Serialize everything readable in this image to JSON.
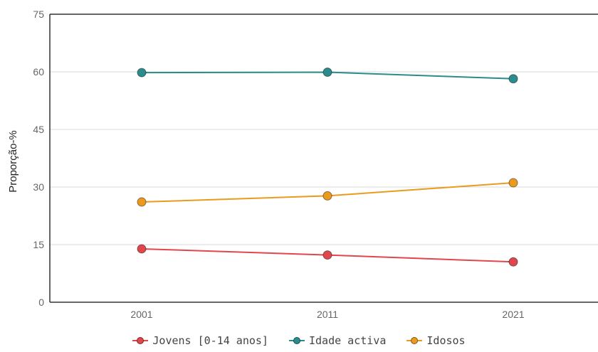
{
  "chart_data": {
    "type": "line",
    "categories": [
      "2001",
      "2011",
      "2021"
    ],
    "ylabel": "Proporção-%",
    "xlabel": "",
    "ylim": [
      0,
      75
    ],
    "yticks": [
      0,
      15,
      30,
      45,
      60,
      75
    ],
    "grid": true,
    "legend_position": "bottom",
    "series": [
      {
        "name": "Jovens [0-14 anos]",
        "color": "#e0474c",
        "values": [
          13.9,
          12.3,
          10.5
        ]
      },
      {
        "name": "Idade activa",
        "color": "#2a8c8c",
        "values": [
          59.8,
          59.9,
          58.2
        ]
      },
      {
        "name": "Idosos",
        "color": "#ec9a1e",
        "values": [
          26.1,
          27.7,
          31.1
        ]
      }
    ]
  }
}
